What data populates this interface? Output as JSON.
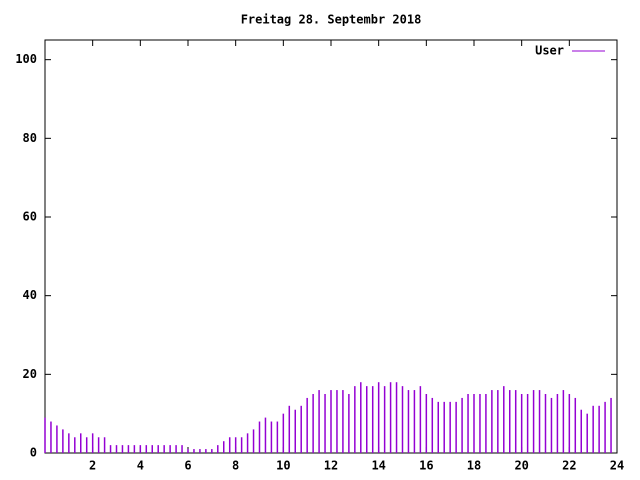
{
  "chart_data": {
    "type": "impulses",
    "title": "Freitag 28. Septembr 2018",
    "x": [
      0,
      0.25,
      0.5,
      0.75,
      1,
      1.25,
      1.5,
      1.75,
      2,
      2.25,
      2.5,
      2.75,
      3,
      3.25,
      3.5,
      3.75,
      4,
      4.25,
      4.5,
      4.75,
      5,
      5.25,
      5.5,
      5.75,
      6,
      6.25,
      6.5,
      6.75,
      7,
      7.25,
      7.5,
      7.75,
      8,
      8.25,
      8.5,
      8.75,
      9,
      9.25,
      9.5,
      9.75,
      10,
      10.25,
      10.5,
      10.75,
      11,
      11.25,
      11.5,
      11.75,
      12,
      12.25,
      12.5,
      12.75,
      13,
      13.25,
      13.5,
      13.75,
      14,
      14.25,
      14.5,
      14.75,
      15,
      15.25,
      15.5,
      15.75,
      16,
      16.25,
      16.5,
      16.75,
      17,
      17.25,
      17.5,
      17.75,
      18,
      18.25,
      18.5,
      18.75,
      19,
      19.25,
      19.5,
      19.75,
      20,
      20.25,
      20.5,
      20.75,
      21,
      21.25,
      21.5,
      21.75,
      22,
      22.25,
      22.5,
      22.75,
      23,
      23.25,
      23.5,
      23.75
    ],
    "series": [
      {
        "name": "User",
        "color": "#9400d3",
        "values": [
          9,
          8,
          7,
          6,
          5,
          4,
          5,
          4,
          5,
          4,
          4,
          2,
          2,
          2,
          2,
          2,
          2,
          2,
          2,
          2,
          2,
          2,
          2,
          2,
          1,
          1,
          1,
          1,
          1,
          2,
          3,
          4,
          4,
          4,
          5,
          6,
          8,
          9,
          8,
          8,
          10,
          12,
          11,
          12,
          14,
          15,
          16,
          15,
          16,
          16,
          16,
          15,
          17,
          18,
          17,
          17,
          18,
          17,
          18,
          18,
          17,
          16,
          16,
          17,
          15,
          14,
          13,
          13,
          13,
          13,
          14,
          15,
          15,
          15,
          15,
          16,
          16,
          17,
          16,
          16,
          15,
          15,
          16,
          16,
          15,
          14,
          15,
          16,
          15,
          14,
          11,
          10,
          12,
          12,
          13,
          14
        ]
      }
    ],
    "xlim": [
      0,
      24
    ],
    "xticks": [
      2,
      4,
      6,
      8,
      10,
      12,
      14,
      16,
      18,
      20,
      22,
      24
    ],
    "ylim": [
      0,
      105
    ],
    "yticks": [
      0,
      20,
      40,
      60,
      80,
      100
    ],
    "legend": "top-right"
  }
}
